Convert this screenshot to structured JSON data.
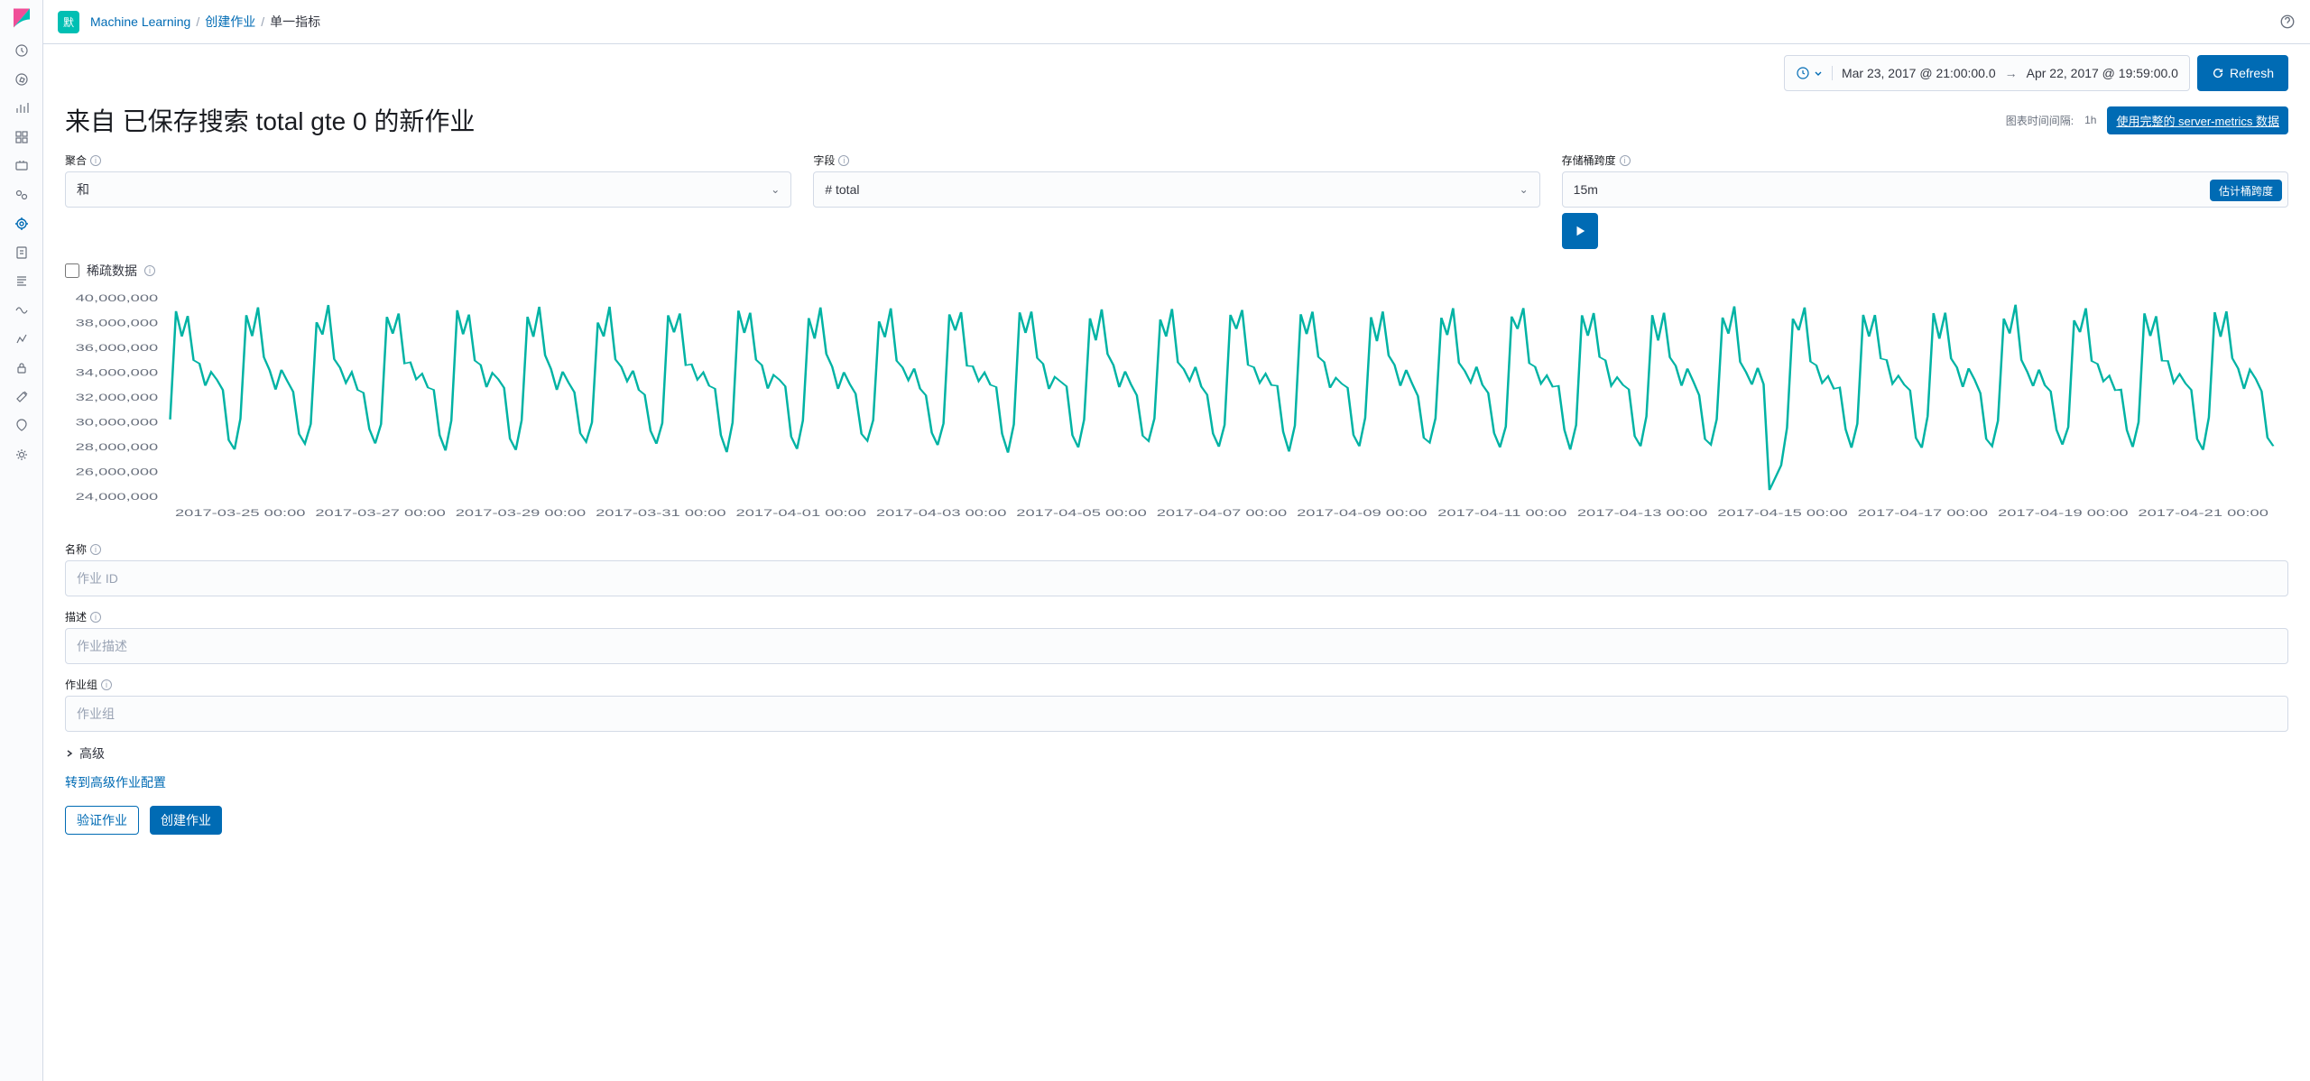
{
  "breadcrumb": {
    "toggle": "默",
    "items": [
      "Machine Learning",
      "创建作业"
    ],
    "current": "单一指标"
  },
  "timepicker": {
    "from": "Mar 23, 2017 @ 21:00:00.0",
    "to": "Apr 22, 2017 @ 19:59:00.0",
    "refresh": "Refresh"
  },
  "header": {
    "title": "来自 已保存搜索 total gte 0 的新作业",
    "interval_label": "图表时间间隔:",
    "interval_value": "1h",
    "full_data_btn": "使用完整的 server-metrics 数据"
  },
  "form": {
    "agg_label": "聚合",
    "agg_value": "和",
    "field_label": "字段",
    "field_value": "# total",
    "bucket_label": "存储桶跨度",
    "bucket_value": "15m",
    "estimate_btn": "估计桶跨度",
    "sparse_label": "稀疏数据"
  },
  "chart": {
    "type": "line",
    "line_color": "#00b3a4",
    "line_width": 1.5,
    "background": "#ffffff",
    "y_axis": {
      "min": 24000000,
      "max": 40000000,
      "step": 2000000,
      "ticks": [
        "40,000,000",
        "38,000,000",
        "36,000,000",
        "34,000,000",
        "32,000,000",
        "30,000,000",
        "28,000,000",
        "26,000,000",
        "24,000,000"
      ]
    },
    "x_axis": {
      "ticks": [
        "2017-03-25 00:00",
        "2017-03-27 00:00",
        "2017-03-29 00:00",
        "2017-03-31 00:00",
        "2017-04-01 00:00",
        "2017-04-03 00:00",
        "2017-04-05 00:00",
        "2017-04-07 00:00",
        "2017-04-09 00:00",
        "2017-04-11 00:00",
        "2017-04-13 00:00",
        "2017-04-15 00:00",
        "2017-04-17 00:00",
        "2017-04-19 00:00",
        "2017-04-21 00:00"
      ]
    },
    "cycles": 30,
    "pattern": [
      30,
      38.5,
      37,
      39,
      35,
      34.5,
      33,
      34,
      33,
      32.5,
      29,
      28
    ],
    "anomaly_cycle": 22,
    "anomaly_min": 24.5
  },
  "job": {
    "name_label": "名称",
    "name_placeholder": "作业 ID",
    "desc_label": "描述",
    "desc_placeholder": "作业描述",
    "group_label": "作业组",
    "group_placeholder": "作业组",
    "advanced": "高级",
    "advanced_link": "转到高级作业配置",
    "validate_btn": "验证作业",
    "create_btn": "创建作业"
  },
  "sidenav_icons": [
    "clock",
    "compass",
    "bar-chart",
    "grid",
    "briefcase",
    "users",
    "target",
    "lock",
    "list",
    "tag",
    "anchor",
    "key",
    "wrench",
    "heart",
    "gear"
  ]
}
